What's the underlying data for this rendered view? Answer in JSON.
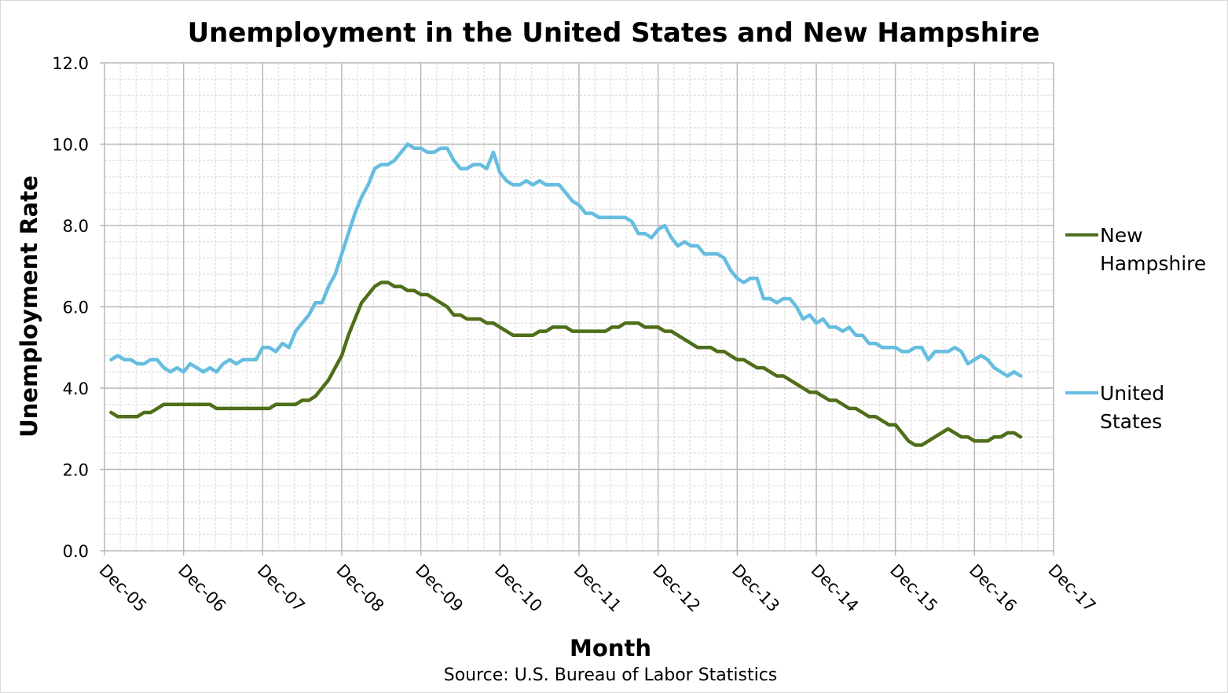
{
  "chart_data": {
    "type": "line",
    "title": "Unemployment in the United States and New Hampshire",
    "xlabel": "Month",
    "ylabel": "Unemployment Rate",
    "source": "Source: U.S. Bureau of Labor Statistics",
    "ylim": [
      0,
      12
    ],
    "y_ticks": [
      "0.0",
      "2.0",
      "4.0",
      "6.0",
      "8.0",
      "10.0",
      "12.0"
    ],
    "x_ticks": [
      "Dec-05",
      "Dec-06",
      "Dec-07",
      "Dec-08",
      "Dec-09",
      "Dec-10",
      "Dec-11",
      "Dec-12",
      "Dec-13",
      "Dec-14",
      "Dec-15",
      "Dec-16",
      "Dec-17"
    ],
    "x_start": "Jan-06",
    "x_end": "Jul-17",
    "grid": true,
    "legend_position": "right",
    "series": [
      {
        "name": "New Hampshire",
        "color": "#4f6e1a",
        "values": [
          3.4,
          3.3,
          3.3,
          3.3,
          3.3,
          3.4,
          3.4,
          3.5,
          3.6,
          3.6,
          3.6,
          3.6,
          3.6,
          3.6,
          3.6,
          3.6,
          3.5,
          3.5,
          3.5,
          3.5,
          3.5,
          3.5,
          3.5,
          3.5,
          3.5,
          3.6,
          3.6,
          3.6,
          3.6,
          3.7,
          3.7,
          3.8,
          4.0,
          4.2,
          4.5,
          4.8,
          5.3,
          5.7,
          6.1,
          6.3,
          6.5,
          6.6,
          6.6,
          6.5,
          6.5,
          6.4,
          6.4,
          6.3,
          6.3,
          6.2,
          6.1,
          6.0,
          5.8,
          5.8,
          5.7,
          5.7,
          5.7,
          5.6,
          5.6,
          5.5,
          5.4,
          5.3,
          5.3,
          5.3,
          5.3,
          5.4,
          5.4,
          5.5,
          5.5,
          5.5,
          5.4,
          5.4,
          5.4,
          5.4,
          5.4,
          5.4,
          5.5,
          5.5,
          5.6,
          5.6,
          5.6,
          5.5,
          5.5,
          5.5,
          5.4,
          5.4,
          5.3,
          5.2,
          5.1,
          5.0,
          5.0,
          5.0,
          4.9,
          4.9,
          4.8,
          4.7,
          4.7,
          4.6,
          4.5,
          4.5,
          4.4,
          4.3,
          4.3,
          4.2,
          4.1,
          4.0,
          3.9,
          3.9,
          3.8,
          3.7,
          3.7,
          3.6,
          3.5,
          3.5,
          3.4,
          3.3,
          3.3,
          3.2,
          3.1,
          3.1,
          2.9,
          2.7,
          2.6,
          2.6,
          2.7,
          2.8,
          2.9,
          3.0,
          2.9,
          2.8,
          2.8,
          2.7,
          2.7,
          2.7,
          2.8,
          2.8,
          2.9,
          2.9,
          2.8
        ]
      },
      {
        "name": "United States",
        "color": "#66bde0",
        "values": [
          4.7,
          4.8,
          4.7,
          4.7,
          4.6,
          4.6,
          4.7,
          4.7,
          4.5,
          4.4,
          4.5,
          4.4,
          4.6,
          4.5,
          4.4,
          4.5,
          4.4,
          4.6,
          4.7,
          4.6,
          4.7,
          4.7,
          4.7,
          5.0,
          5.0,
          4.9,
          5.1,
          5.0,
          5.4,
          5.6,
          5.8,
          6.1,
          6.1,
          6.5,
          6.8,
          7.3,
          7.8,
          8.3,
          8.7,
          9.0,
          9.4,
          9.5,
          9.5,
          9.6,
          9.8,
          10.0,
          9.9,
          9.9,
          9.8,
          9.8,
          9.9,
          9.9,
          9.6,
          9.4,
          9.4,
          9.5,
          9.5,
          9.4,
          9.8,
          9.3,
          9.1,
          9.0,
          9.0,
          9.1,
          9.0,
          9.1,
          9.0,
          9.0,
          9.0,
          8.8,
          8.6,
          8.5,
          8.3,
          8.3,
          8.2,
          8.2,
          8.2,
          8.2,
          8.2,
          8.1,
          7.8,
          7.8,
          7.7,
          7.9,
          8.0,
          7.7,
          7.5,
          7.6,
          7.5,
          7.5,
          7.3,
          7.3,
          7.3,
          7.2,
          6.9,
          6.7,
          6.6,
          6.7,
          6.7,
          6.2,
          6.2,
          6.1,
          6.2,
          6.2,
          6.0,
          5.7,
          5.8,
          5.6,
          5.7,
          5.5,
          5.5,
          5.4,
          5.5,
          5.3,
          5.3,
          5.1,
          5.1,
          5.0,
          5.0,
          5.0,
          4.9,
          4.9,
          5.0,
          5.0,
          4.7,
          4.9,
          4.9,
          4.9,
          5.0,
          4.9,
          4.6,
          4.7,
          4.8,
          4.7,
          4.5,
          4.4,
          4.3,
          4.4,
          4.3
        ]
      }
    ],
    "legend": [
      {
        "lines": [
          "New",
          "Hampshire"
        ]
      },
      {
        "lines": [
          "United",
          "States"
        ]
      }
    ]
  }
}
